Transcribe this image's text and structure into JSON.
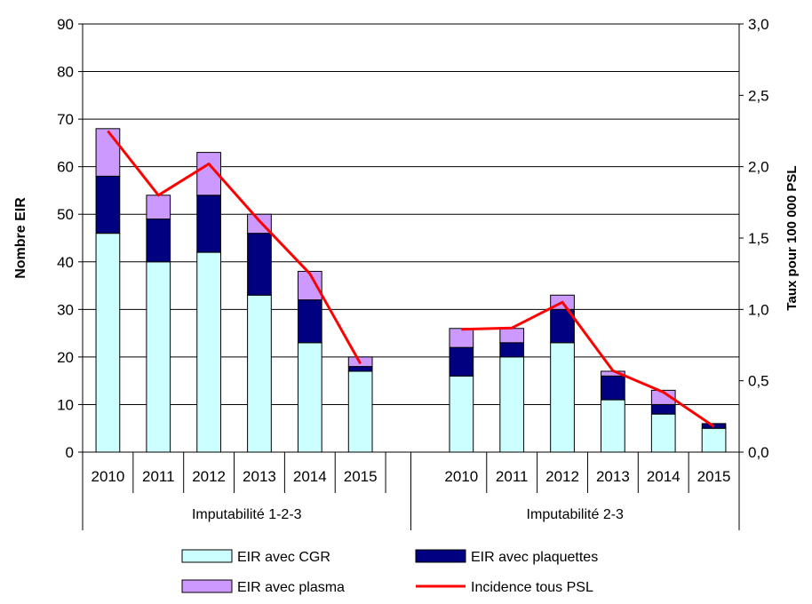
{
  "chart_data": {
    "type": "bar",
    "stacked": true,
    "groups": [
      {
        "label": "Imputabilité 1-2-3",
        "categories": [
          "2010",
          "2011",
          "2012",
          "2013",
          "2014",
          "2015"
        ]
      },
      {
        "label": "Imputabilité 2-3",
        "categories": [
          "2010",
          "2011",
          "2012",
          "2013",
          "2014",
          "2015"
        ]
      }
    ],
    "series": [
      {
        "name": "EIR avec CGR",
        "color": "#ccffff",
        "values": [
          46,
          40,
          42,
          33,
          23,
          17,
          16,
          20,
          23,
          11,
          8,
          5
        ]
      },
      {
        "name": "EIR avec plaquettes",
        "color": "#000080",
        "values": [
          12,
          9,
          12,
          13,
          9,
          1,
          6,
          3,
          7,
          5,
          2,
          1
        ]
      },
      {
        "name": "EIR avec plasma",
        "color": "#cc99ff",
        "values": [
          10,
          5,
          9,
          4,
          6,
          2,
          4,
          3,
          3,
          1,
          3,
          0
        ]
      }
    ],
    "line_series": {
      "name": "Incidence tous PSL",
      "color": "#ff0000",
      "axis": "right",
      "values": [
        2.25,
        1.8,
        2.02,
        1.62,
        1.25,
        0.62,
        0.86,
        0.87,
        1.05,
        0.57,
        0.42,
        0.18
      ]
    },
    "ylabel": "Nombre EIR",
    "ylabel_right": "Taux pour 100 000 PSL",
    "ylim": [
      0,
      90
    ],
    "yticks": [
      "0",
      "10",
      "20",
      "30",
      "40",
      "50",
      "60",
      "70",
      "80",
      "90"
    ],
    "ylim_right": [
      0,
      3
    ],
    "yticks_right": [
      "0,0",
      "0,5",
      "1,0",
      "1,5",
      "2,0",
      "2,5",
      "3,0"
    ],
    "grid": true,
    "legend": "bottom"
  }
}
